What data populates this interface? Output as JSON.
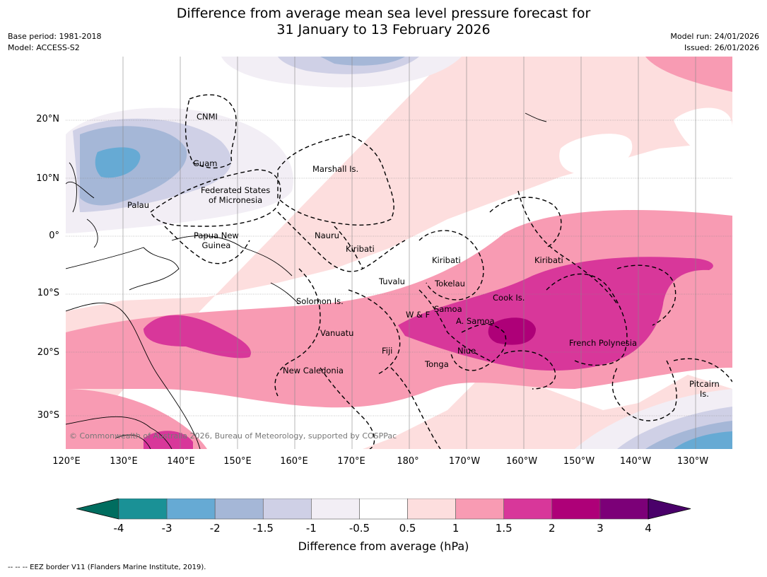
{
  "title_line1": "Difference from average mean sea level pressure forecast for",
  "title_line2": "31 January to 13 February 2026",
  "meta_left": [
    "Base period: 1981-2018",
    "Model: ACCESS-S2"
  ],
  "meta_right": [
    "Model run: 24/01/2026",
    "Issued: 26/01/2026"
  ],
  "copyright": "© Commonwealth of Australia 2026, Bureau of Meteorology, supported by COSPPac",
  "lat_ticks": [
    "20°N",
    "10°N",
    "0°",
    "10°S",
    "20°S",
    "30°S"
  ],
  "lon_ticks": [
    "120°E",
    "130°E",
    "140°E",
    "150°E",
    "160°E",
    "170°E",
    "180°",
    "170°W",
    "160°W",
    "150°W",
    "140°W",
    "130°W"
  ],
  "region_labels": [
    {
      "text": "CNMI"
    },
    {
      "text": "Guam"
    },
    {
      "text": "Marshall Is."
    },
    {
      "text": "Federated States\nof Micronesia"
    },
    {
      "text": "Palau"
    },
    {
      "text": "Papua New\nGuinea"
    },
    {
      "text": "Nauru"
    },
    {
      "text": "Kiribati"
    },
    {
      "text": "Kiribati"
    },
    {
      "text": "Kiribati"
    },
    {
      "text": "Tuvalu"
    },
    {
      "text": "Tokelau"
    },
    {
      "text": "Solomon Is."
    },
    {
      "text": "Cook Is."
    },
    {
      "text": "W & F"
    },
    {
      "text": "Samoa"
    },
    {
      "text": "A. Samoa"
    },
    {
      "text": "Vanuatu"
    },
    {
      "text": "Fiji"
    },
    {
      "text": "Niue"
    },
    {
      "text": "French Polynesia"
    },
    {
      "text": "Tonga"
    },
    {
      "text": "New Caledonia"
    },
    {
      "text": "Pitcairn\nIs."
    }
  ],
  "colorbar": {
    "ticks": [
      "-4",
      "-3",
      "-2",
      "-1.5",
      "-1",
      "-0.5",
      "0.5",
      "1",
      "1.5",
      "2",
      "3",
      "4"
    ],
    "colors": [
      "#1a9196",
      "#66aad4",
      "#a5b7d7",
      "#cfd0e6",
      "#f2eef5",
      "#ffffff",
      "#fddede",
      "#f89bb3",
      "#d8379a",
      "#ae0078",
      "#7c0078"
    ],
    "under_color": "#006d5f",
    "over_color": "#4a006a",
    "label": "Difference from average (hPa)"
  },
  "footnote": "--  --  -- EEZ border V11 (Flanders Marine Institute, 2019)."
}
